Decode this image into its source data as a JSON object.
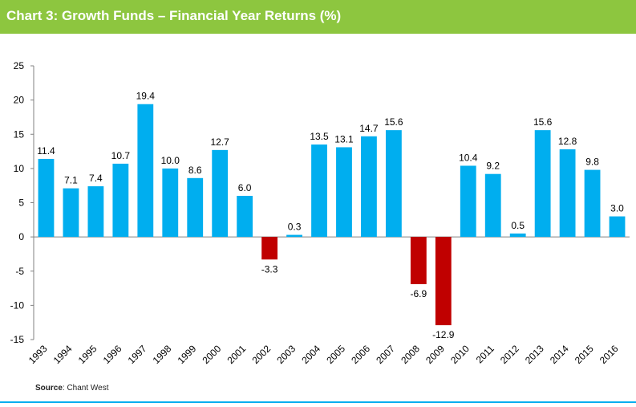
{
  "header": {
    "title": "Chart 3:  Growth Funds – Financial Year Returns (%)"
  },
  "footer": {
    "source_label": "Source",
    "source_text": ": Chant West"
  },
  "colors": {
    "header": "#8dc63f",
    "positive": "#00aeef",
    "negative": "#c00000",
    "footer_line": "#00aeef"
  },
  "chart_data": {
    "type": "bar",
    "title": "Growth Funds – Financial Year Returns (%)",
    "xlabel": "",
    "ylabel": "",
    "ylim": [
      -15,
      25
    ],
    "yticks": [
      25,
      20,
      15,
      10,
      5,
      0,
      -5,
      -10,
      -15
    ],
    "grid": false,
    "categories": [
      "1993",
      "1994",
      "1995",
      "1996",
      "1997",
      "1998",
      "1999",
      "2000",
      "2001",
      "2002",
      "2003",
      "2004",
      "2005",
      "2006",
      "2007",
      "2008",
      "2009",
      "2010",
      "2011",
      "2012",
      "2013",
      "2014",
      "2015",
      "2016"
    ],
    "values": [
      11.4,
      7.1,
      7.4,
      10.7,
      19.4,
      10.0,
      8.6,
      12.7,
      6.0,
      -3.3,
      0.3,
      13.5,
      13.1,
      14.7,
      15.6,
      -6.9,
      -12.9,
      10.4,
      9.2,
      0.5,
      15.6,
      12.8,
      9.8,
      3.0
    ],
    "data_labels": [
      "11.4",
      "7.1",
      "7.4",
      "10.7",
      "19.4",
      "10.0",
      "8.6",
      "12.7",
      "6.0",
      "-3.3",
      "0.3",
      "13.5",
      "13.1",
      "14.7",
      "15.6",
      "-6.9",
      "-12.9",
      "10.4",
      "9.2",
      "0.5",
      "15.6",
      "12.8",
      "9.8",
      "3.0"
    ]
  }
}
